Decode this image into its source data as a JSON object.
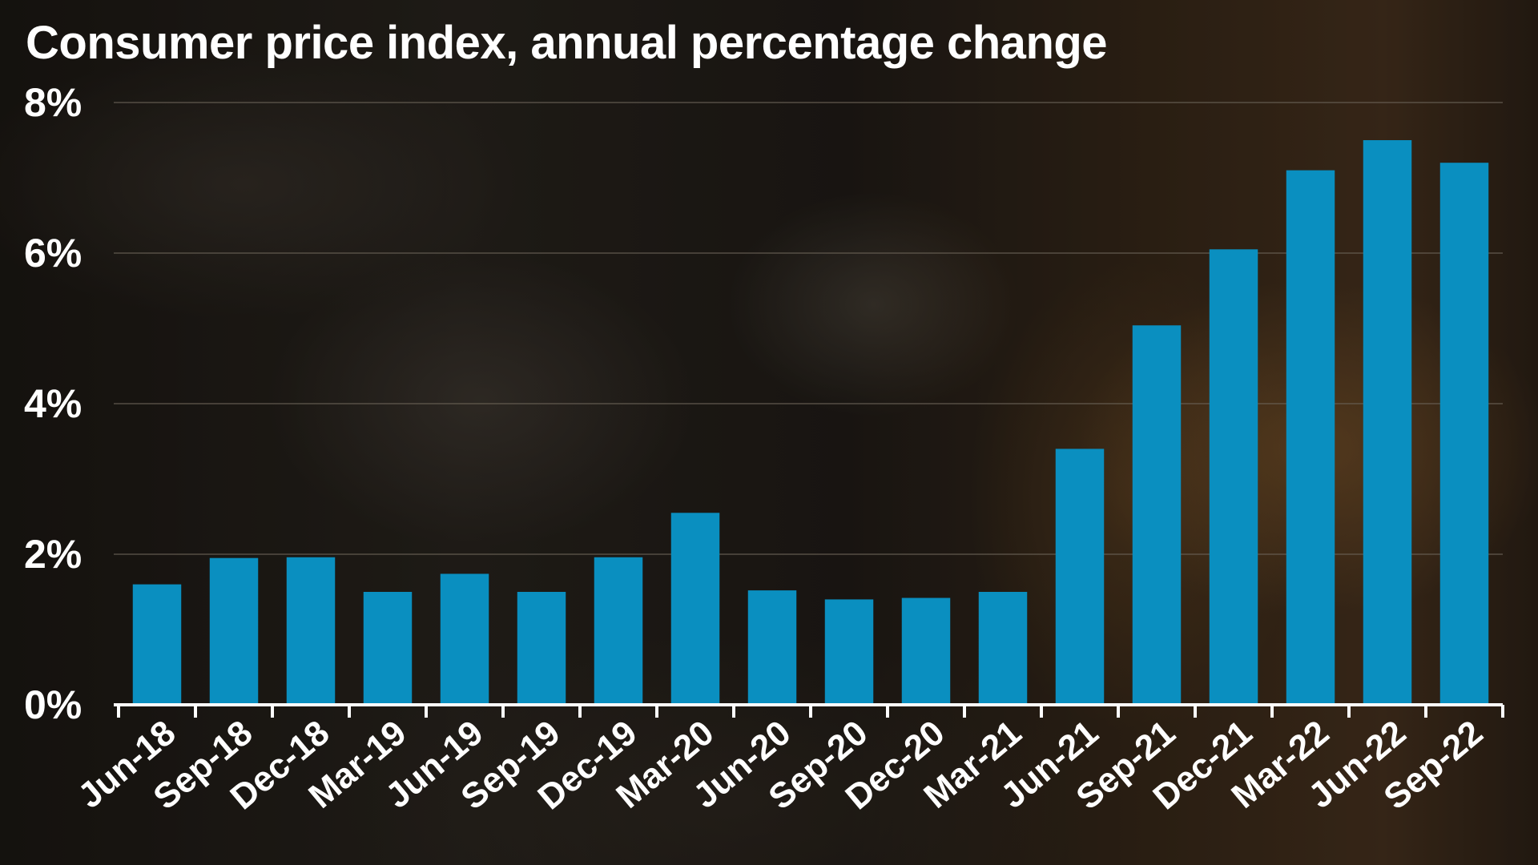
{
  "chart_data": {
    "type": "bar",
    "title": "Consumer price index, annual percentage change",
    "xlabel": "",
    "ylabel": "",
    "categories": [
      "Jun-18",
      "Sep-18",
      "Dec-18",
      "Mar-19",
      "Jun-19",
      "Sep-19",
      "Dec-19",
      "Mar-20",
      "Jun-20",
      "Sep-20",
      "Dec-20",
      "Mar-21",
      "Jun-21",
      "Sep-21",
      "Dec-21",
      "Mar-22",
      "Jun-22",
      "Sep-22"
    ],
    "values": [
      1.6,
      1.95,
      1.96,
      1.5,
      1.74,
      1.5,
      1.96,
      2.55,
      1.52,
      1.4,
      1.42,
      1.5,
      3.4,
      5.04,
      6.05,
      7.1,
      7.5,
      7.2
    ],
    "ylim": [
      0,
      8
    ],
    "yticks": [
      0,
      2,
      4,
      6,
      8
    ],
    "ytick_labels": [
      "0%",
      "2%",
      "4%",
      "6%",
      "8%"
    ],
    "grid": true,
    "legend": "none",
    "bar_color": "#0a8fc0",
    "gridline_color": "#6a6256",
    "axis_color": "#ffffff"
  }
}
